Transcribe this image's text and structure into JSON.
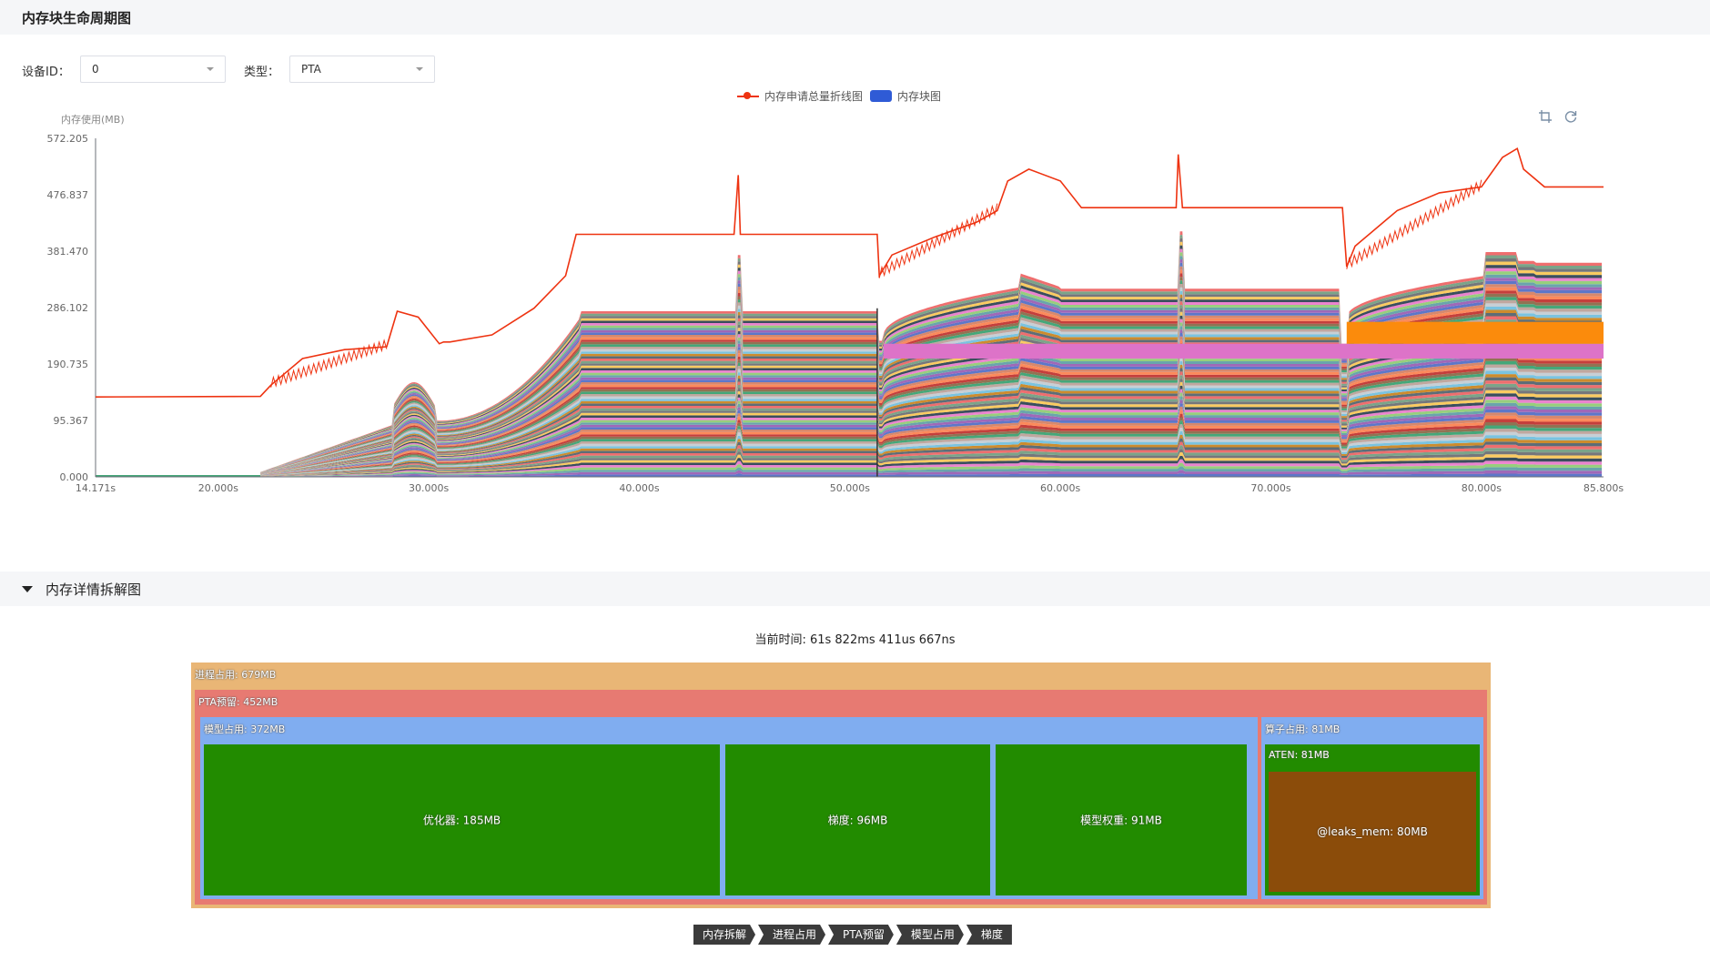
{
  "sections": {
    "lifecycle_title": "内存块生命周期图",
    "breakdown_title": "内存详情拆解图"
  },
  "controls": {
    "device_label": "设备ID：",
    "device_value": "0",
    "type_label": "类型：",
    "type_value": "PTA"
  },
  "legend": {
    "line_label": "内存申请总量折线图",
    "block_label": "内存块图"
  },
  "toolbox": {
    "zoom_icon": "crop-icon",
    "reset_icon": "refresh-icon"
  },
  "colors": {
    "line": "#ee3311",
    "block_legend": "#2f5bd6",
    "process": "#e9b676",
    "pta": "#e77a72",
    "model": "#80adf0",
    "leaf": "#228b00",
    "leaks": "#8b4c0a"
  },
  "chart_data": {
    "type": "line",
    "ylabel": "内存使用(MB)",
    "y_ticks": [
      "572.205",
      "476.837",
      "381.470",
      "286.102",
      "190.735",
      "95.367",
      "0.000"
    ],
    "x_ticks": [
      "14.171s",
      "20.000s",
      "30.000s",
      "40.000s",
      "50.000s",
      "60.000s",
      "70.000s",
      "80.000s",
      "85.800s"
    ],
    "xlim": [
      14.171,
      85.8
    ],
    "ylim": [
      0,
      572.205
    ],
    "series": [
      {
        "x": [
          14.171,
          22,
          22.5,
          24,
          26,
          28,
          28.5,
          29.5,
          30.5,
          30.7,
          31,
          33,
          35,
          36.5,
          37,
          38,
          41,
          43,
          44.5,
          44.7,
          44.8,
          45.2,
          51.3,
          51.4,
          52,
          54,
          56,
          57,
          57.5,
          58.5,
          60,
          61,
          62,
          64,
          65.5,
          65.6,
          65.8,
          73.4,
          73.6,
          74,
          76,
          78,
          80,
          81,
          81.7,
          82,
          83,
          85.8
        ],
        "y": [
          135,
          136,
          155,
          200,
          215,
          220,
          280,
          270,
          225,
          228,
          228,
          240,
          285,
          340,
          410,
          410,
          410,
          410,
          410,
          510,
          410,
          410,
          410,
          340,
          375,
          405,
          430,
          450,
          500,
          520,
          500,
          455,
          455,
          455,
          455,
          545,
          455,
          455,
          355,
          390,
          450,
          480,
          490,
          540,
          555,
          520,
          490,
          490
        ]
      }
    ]
  },
  "breakdown": {
    "current_time": "当前时间: 61s 822ms 411us 667ns",
    "process": "进程占用: 679MB",
    "pta": "PTA预留: 452MB",
    "model": "模型占用: 372MB",
    "optimizer": "优化器: 185MB",
    "gradient": "梯度: 96MB",
    "weights": "模型权重: 91MB",
    "operator": "算子占用: 81MB",
    "aten": "ATEN: 81MB",
    "leaks": "@leaks_mem: 80MB"
  },
  "breadcrumb": [
    "内存拆解",
    "进程占用",
    "PTA预留",
    "模型占用",
    "梯度"
  ]
}
